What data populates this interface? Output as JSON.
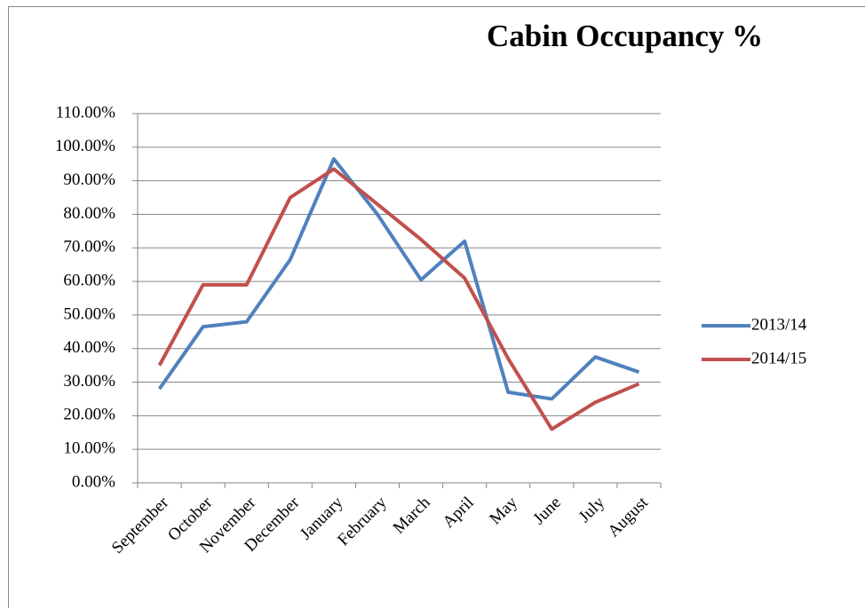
{
  "chart_data": {
    "type": "line",
    "title": "Cabin Occupancy %",
    "categories": [
      "September",
      "October",
      "November",
      "December",
      "January",
      "February",
      "March",
      "April",
      "May",
      "June",
      "July",
      "August"
    ],
    "series": [
      {
        "name": "2013/14",
        "color": "#4f81bd",
        "values": [
          28,
          46.5,
          48,
          66.5,
          96.5,
          80,
          60.5,
          72,
          27,
          25,
          37.5,
          33
        ]
      },
      {
        "name": "2014/15",
        "color": "#c0504d",
        "values": [
          35,
          59,
          59,
          85,
          93.5,
          83,
          72.5,
          61,
          37,
          16,
          24,
          29.5
        ]
      }
    ],
    "ylim": [
      0,
      110
    ],
    "yticks": [
      {
        "value": 0,
        "label": "0.00%"
      },
      {
        "value": 10,
        "label": "10.00%"
      },
      {
        "value": 20,
        "label": "20.00%"
      },
      {
        "value": 30,
        "label": "30.00%"
      },
      {
        "value": 40,
        "label": "40.00%"
      },
      {
        "value": 50,
        "label": "50.00%"
      },
      {
        "value": 60,
        "label": "60.00%"
      },
      {
        "value": 70,
        "label": "70.00%"
      },
      {
        "value": 80,
        "label": "80.00%"
      },
      {
        "value": 90,
        "label": "90.00%"
      },
      {
        "value": 100,
        "label": "100.00%"
      },
      {
        "value": 110,
        "label": "110.00%"
      }
    ],
    "grid": true,
    "legend": "right"
  }
}
